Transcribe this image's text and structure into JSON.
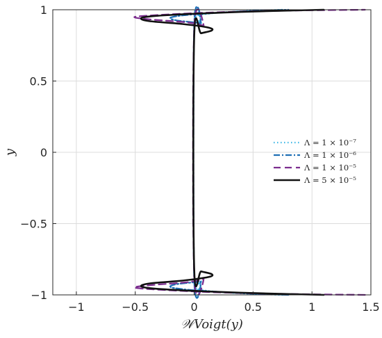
{
  "chart_data": {
    "type": "line",
    "xlabel": "𝒲Voigt(y)",
    "ylabel": "y",
    "xlim": [
      -1.2,
      1.5
    ],
    "ylim": [
      -1,
      1
    ],
    "grid": true,
    "legend_placement": "right",
    "x_ticks": [
      "−1",
      "−0.5",
      "0",
      "0.5",
      "1",
      "1.5"
    ],
    "y_ticks": [
      "−1",
      "−0.5",
      "0",
      "0.5",
      "1"
    ],
    "series": [
      {
        "name": "Λ = 1 × 10⁻⁷",
        "style": "dotted",
        "color": "#3fb8e6",
        "points": [
          [
            0.75,
            -1.0
          ],
          [
            0.42,
            -0.99
          ],
          [
            0.15,
            -0.975
          ],
          [
            0.03,
            -0.96
          ],
          [
            0.01,
            -0.94
          ],
          [
            0.06,
            -0.905
          ],
          [
            0.0,
            -0.88
          ],
          [
            0.0,
            0.88
          ],
          [
            0.06,
            0.905
          ],
          [
            0.01,
            0.94
          ],
          [
            0.03,
            0.96
          ],
          [
            0.15,
            0.975
          ],
          [
            0.42,
            0.99
          ],
          [
            0.75,
            1.0
          ]
        ]
      },
      {
        "name": "Λ = 1 × 10⁻⁶",
        "style": "dashdot",
        "color": "#1f6fb5",
        "points": [
          [
            0.8,
            -1.0
          ],
          [
            0.45,
            -0.99
          ],
          [
            0.12,
            -0.975
          ],
          [
            -0.08,
            -0.962
          ],
          [
            -0.2,
            -0.945
          ],
          [
            -0.15,
            -0.925
          ],
          [
            0.05,
            -0.905
          ],
          [
            0.0,
            -0.885
          ],
          [
            0.0,
            0.885
          ],
          [
            0.05,
            0.905
          ],
          [
            -0.15,
            0.925
          ],
          [
            -0.2,
            0.945
          ],
          [
            -0.08,
            0.962
          ],
          [
            0.12,
            0.975
          ],
          [
            0.45,
            0.99
          ],
          [
            0.8,
            1.0
          ]
        ]
      },
      {
        "name": "Λ = 1 × 10⁻⁵",
        "style": "dashed",
        "color": "#7b2d8e",
        "points": [
          [
            1.45,
            -1.0
          ],
          [
            0.9,
            -0.995
          ],
          [
            0.3,
            -0.985
          ],
          [
            -0.15,
            -0.97
          ],
          [
            -0.45,
            -0.955
          ],
          [
            -0.5,
            -0.945
          ],
          [
            -0.35,
            -0.93
          ],
          [
            -0.05,
            -0.91
          ],
          [
            0.08,
            -0.885
          ],
          [
            0.0,
            -0.87
          ],
          [
            0.0,
            0.87
          ],
          [
            0.08,
            0.885
          ],
          [
            -0.05,
            0.91
          ],
          [
            -0.35,
            0.93
          ],
          [
            -0.5,
            0.945
          ],
          [
            -0.45,
            0.955
          ],
          [
            -0.15,
            0.97
          ],
          [
            0.3,
            0.985
          ],
          [
            0.9,
            0.995
          ],
          [
            1.45,
            1.0
          ]
        ]
      },
      {
        "name": "Λ = 5 × 10⁻⁵",
        "style": "solid",
        "color": "#111111",
        "points": [
          [
            1.1,
            -1.0
          ],
          [
            0.85,
            -0.995
          ],
          [
            0.4,
            -0.985
          ],
          [
            -0.05,
            -0.97
          ],
          [
            -0.35,
            -0.955
          ],
          [
            -0.45,
            -0.94
          ],
          [
            -0.38,
            -0.92
          ],
          [
            -0.1,
            -0.9
          ],
          [
            0.12,
            -0.875
          ],
          [
            0.15,
            -0.855
          ],
          [
            0.06,
            -0.835
          ],
          [
            0.0,
            -0.815
          ],
          [
            0.0,
            0.815
          ],
          [
            0.06,
            0.835
          ],
          [
            0.15,
            0.855
          ],
          [
            0.12,
            0.875
          ],
          [
            -0.1,
            0.9
          ],
          [
            -0.38,
            0.92
          ],
          [
            -0.45,
            0.94
          ],
          [
            -0.35,
            0.955
          ],
          [
            -0.05,
            0.97
          ],
          [
            0.4,
            0.985
          ],
          [
            0.85,
            0.995
          ],
          [
            1.1,
            1.0
          ]
        ]
      }
    ]
  }
}
